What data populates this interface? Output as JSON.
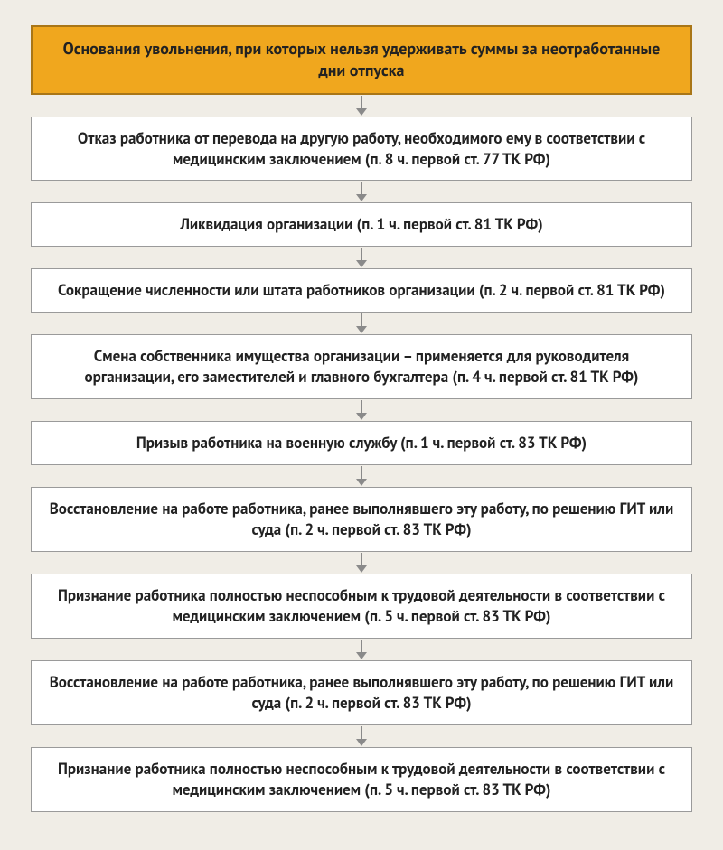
{
  "flowchart": {
    "type": "flowchart",
    "layout": "vertical",
    "page_background": "#f0ede6",
    "arrow_color": "#8a8a8a",
    "header": {
      "text": "Основания увольнения, при которых нельзя удерживать суммы за неотработанные дни отпуска",
      "background": "#f0a71e",
      "border_color": "#a97617",
      "text_color": "#222222",
      "font_size": 18,
      "font_weight": 700
    },
    "node_style": {
      "background": "#ffffff",
      "border_color": "#9a9a9a",
      "text_color": "#222222",
      "font_size": 17,
      "font_weight": 700
    },
    "nodes": [
      {
        "text": "Отказ работника от перевода на другую работу, необходимого ему в соответствии с медицинским заключением (п. 8 ч. первой ст. 77 ТК РФ)"
      },
      {
        "text": "Ликвидация организации (п. 1 ч. первой ст. 81 ТК РФ)"
      },
      {
        "text": "Сокращение численности или штата работников организации (п. 2 ч. первой ст. 81 ТК РФ)"
      },
      {
        "text": "Смена собственника имущества организации – применяется для руководителя организации, его заместителей и главного бухгалтера (п. 4 ч. первой ст. 81 ТК РФ)"
      },
      {
        "text": "Призыв работника на военную службу (п. 1 ч. первой ст. 83 ТК РФ)"
      },
      {
        "text": "Восстановление на работе работника, ранее выполнявшего эту работу, по решению ГИТ или суда (п. 2 ч. первой ст. 83 ТК РФ)"
      },
      {
        "text": "Признание работника полностью неспособным к трудовой деятельности в соответствии с медицинским заключением (п. 5 ч. первой ст. 83 ТК РФ)"
      },
      {
        "text": "Восстановление на работе работника, ранее выполнявшего эту работу, по решению ГИТ или суда (п. 2 ч. первой ст. 83 ТК РФ)"
      },
      {
        "text": "Признание работника полностью неспособным к трудовой деятельности в соответствии с медицинским заключением (п. 5 ч. первой ст. 83 ТК РФ)"
      }
    ]
  }
}
